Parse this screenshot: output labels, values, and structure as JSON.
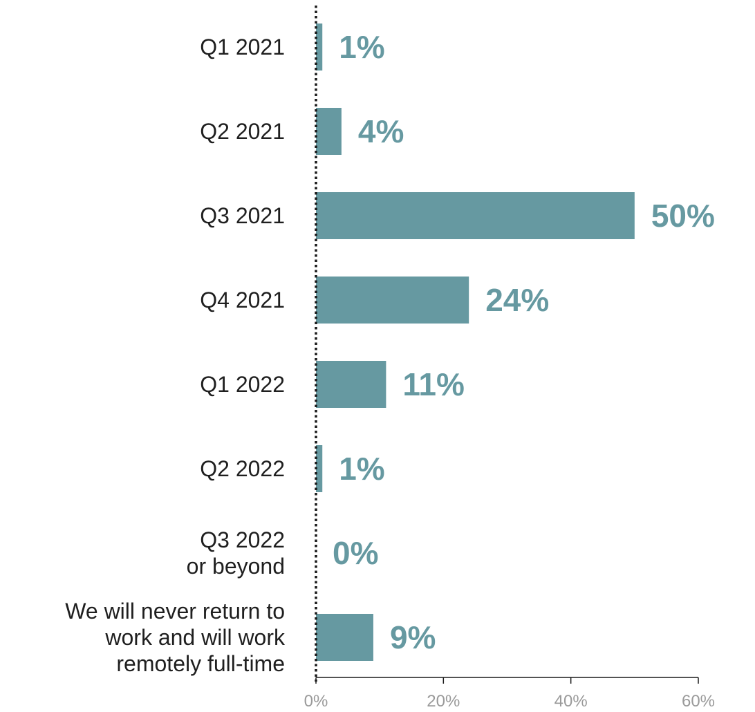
{
  "chart_data": {
    "type": "bar",
    "orientation": "horizontal",
    "categories": [
      [
        "Q1 2021"
      ],
      [
        "Q2 2021"
      ],
      [
        "Q3 2021"
      ],
      [
        "Q4 2021"
      ],
      [
        "Q1 2022"
      ],
      [
        "Q2 2022"
      ],
      [
        "Q3 2022",
        "or beyond"
      ],
      [
        "We will never return to",
        "work and will work",
        "remotely full-time"
      ]
    ],
    "values": [
      1,
      4,
      50,
      24,
      11,
      1,
      0,
      9
    ],
    "value_labels": [
      "1%",
      "4%",
      "50%",
      "24%",
      "11%",
      "1%",
      "0%",
      "9%"
    ],
    "xlim": [
      0,
      60
    ],
    "x_ticks": [
      0,
      20,
      40,
      60
    ],
    "x_tick_labels": [
      "0%",
      "20%",
      "40%",
      "60%"
    ],
    "title": "",
    "xlabel": "",
    "ylabel": "",
    "grid": false,
    "legend": "none",
    "colors": {
      "bar": "#6699a1",
      "value_label": "#6699a1",
      "axis": "#1a1a1a",
      "tick_label": "#9a9a9a",
      "category_label": "#1f1f1f"
    }
  }
}
